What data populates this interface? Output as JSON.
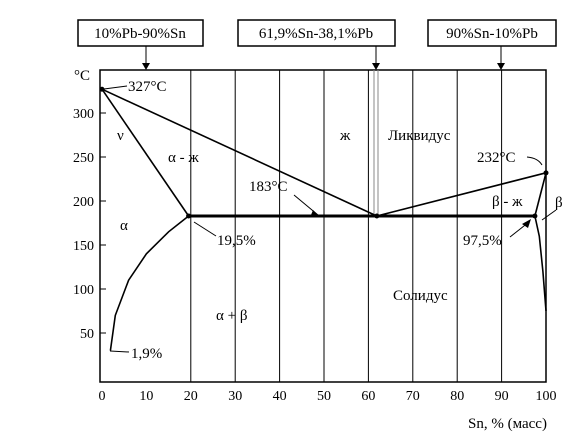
{
  "boxes": {
    "left": "10%Pb-90%Sn",
    "middle": "61,9%Sn-38,1%Pb",
    "right": "90%Sn-10%Pb"
  },
  "axes": {
    "y_unit": "°C",
    "x_label": "Sn, % (масс)",
    "x_ticks": [
      "0",
      "10",
      "20",
      "30",
      "40",
      "50",
      "60",
      "70",
      "80",
      "90",
      "100"
    ],
    "y_ticks": [
      "50",
      "100",
      "150",
      "200",
      "250",
      "300"
    ]
  },
  "annotations": {
    "pb_melting": "327°C",
    "sn_melting": "232°C",
    "eutectic_temp": "183°C",
    "alpha_limit": "19,5%",
    "beta_limit": "97,5%",
    "alpha_room": "1,9%"
  },
  "regions": {
    "nu": "ν",
    "alpha_liquid": "α - ж",
    "liquid": "ж",
    "liquidus": "Ликвидус",
    "alpha": "α",
    "beta_liquid": "β - ж",
    "beta": "β",
    "alpha_beta": "α + β",
    "solidus": "Солидус"
  },
  "chart_data": {
    "type": "line",
    "x_range": [
      0,
      100
    ],
    "y_range": [
      0,
      350
    ],
    "series": [
      {
        "x": [
          0,
          61.9
        ],
        "y": [
          327,
          183
        ]
      },
      {
        "x": [
          61.9,
          100
        ],
        "y": [
          183,
          232
        ]
      },
      {
        "x": [
          0,
          19.5
        ],
        "y": [
          327,
          183
        ]
      },
      {
        "x": [
          19.5,
          97.5
        ],
        "y": [
          183,
          183
        ]
      },
      {
        "x": [
          100,
          97.5
        ],
        "y": [
          232,
          183
        ]
      },
      {
        "x": [
          19.5,
          15,
          10,
          6,
          3,
          1.9
        ],
        "y": [
          183,
          165,
          140,
          110,
          70,
          30
        ]
      },
      {
        "x": [
          97.5,
          98.5,
          99.3,
          100
        ],
        "y": [
          183,
          160,
          120,
          75
        ]
      }
    ],
    "points": [
      {
        "x": 0,
        "y": 327
      },
      {
        "x": 19.5,
        "y": 183
      },
      {
        "x": 61.9,
        "y": 183
      },
      {
        "x": 97.5,
        "y": 183
      },
      {
        "x": 100,
        "y": 232
      }
    ],
    "grid": true
  }
}
